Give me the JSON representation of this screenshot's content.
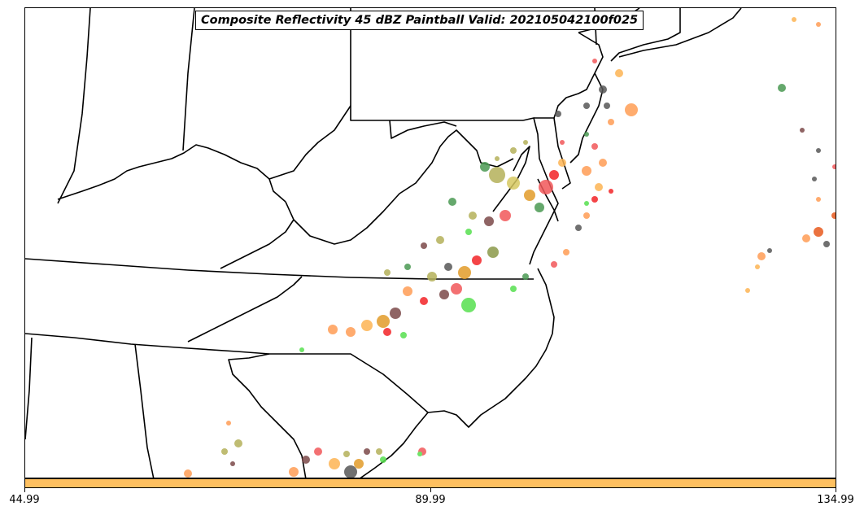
{
  "map": {
    "title": "Composite Reflectivity 45 dBZ Paintball Valid: 202105042100f025",
    "colors": {
      "background": "#ffffff",
      "borders": "#000000",
      "colorbar": "#fec060",
      "paintball": [
        "#f2585a",
        "#7c4a4a",
        "#57e04f",
        "#ff9d55",
        "#b4b15a",
        "#fdb454",
        "#4b9a53",
        "#585858",
        "#e29c2a",
        "#f32428",
        "#d6c861",
        "#e85a1e",
        "#8b9a4a"
      ]
    }
  },
  "colorbar": {
    "ticks": [
      "44.99",
      "89.99",
      "134.99"
    ],
    "range": [
      44.99,
      134.99
    ]
  }
}
